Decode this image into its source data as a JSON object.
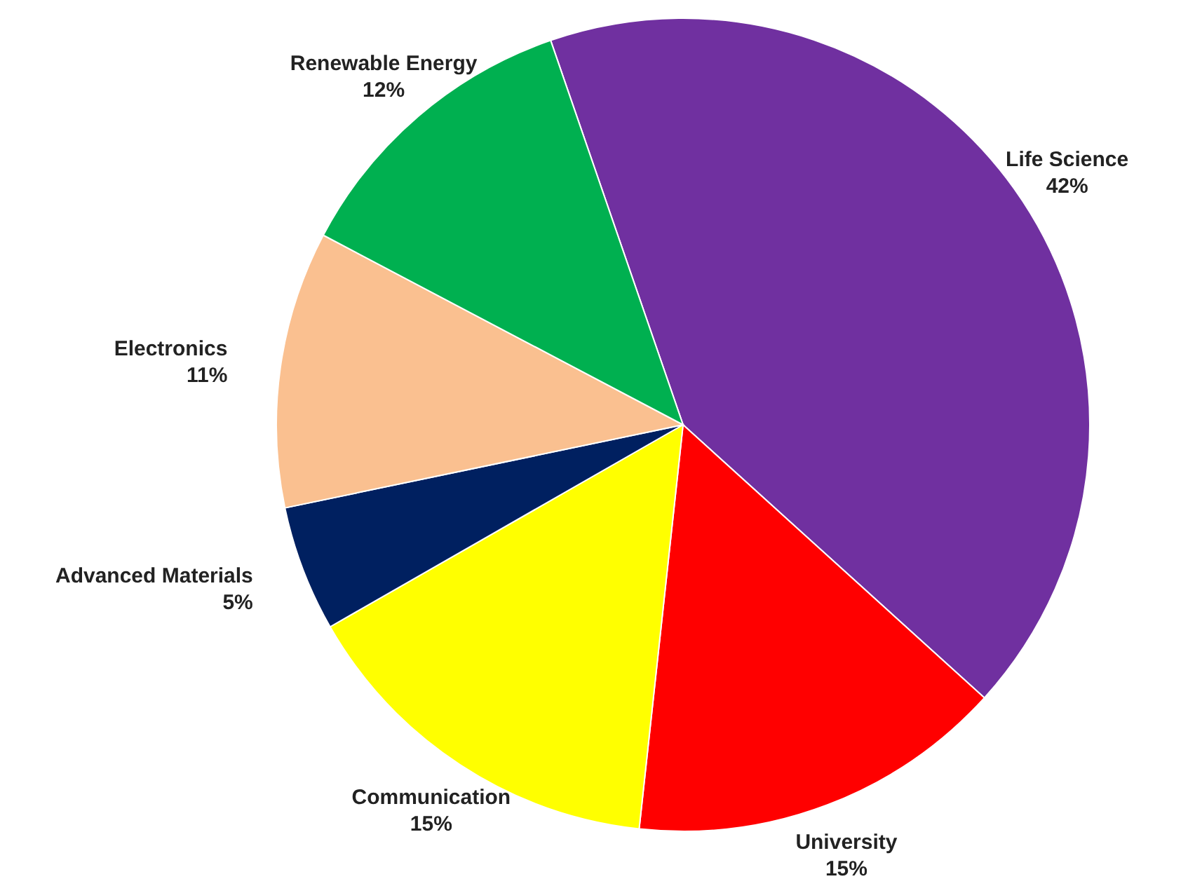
{
  "chart_data": {
    "type": "pie",
    "categories": [
      "Life Science",
      "University",
      "Communication",
      "Advanced Materials",
      "Electronics",
      "Renewable Energy"
    ],
    "values": [
      42,
      15,
      15,
      5,
      11,
      12
    ],
    "colors": [
      "#7030a0",
      "#ff0000",
      "#ffff00",
      "#002060",
      "#fac090",
      "#00b050"
    ],
    "value_labels": [
      "42%",
      "15%",
      "15%",
      "5%",
      "11%",
      "12%"
    ]
  }
}
